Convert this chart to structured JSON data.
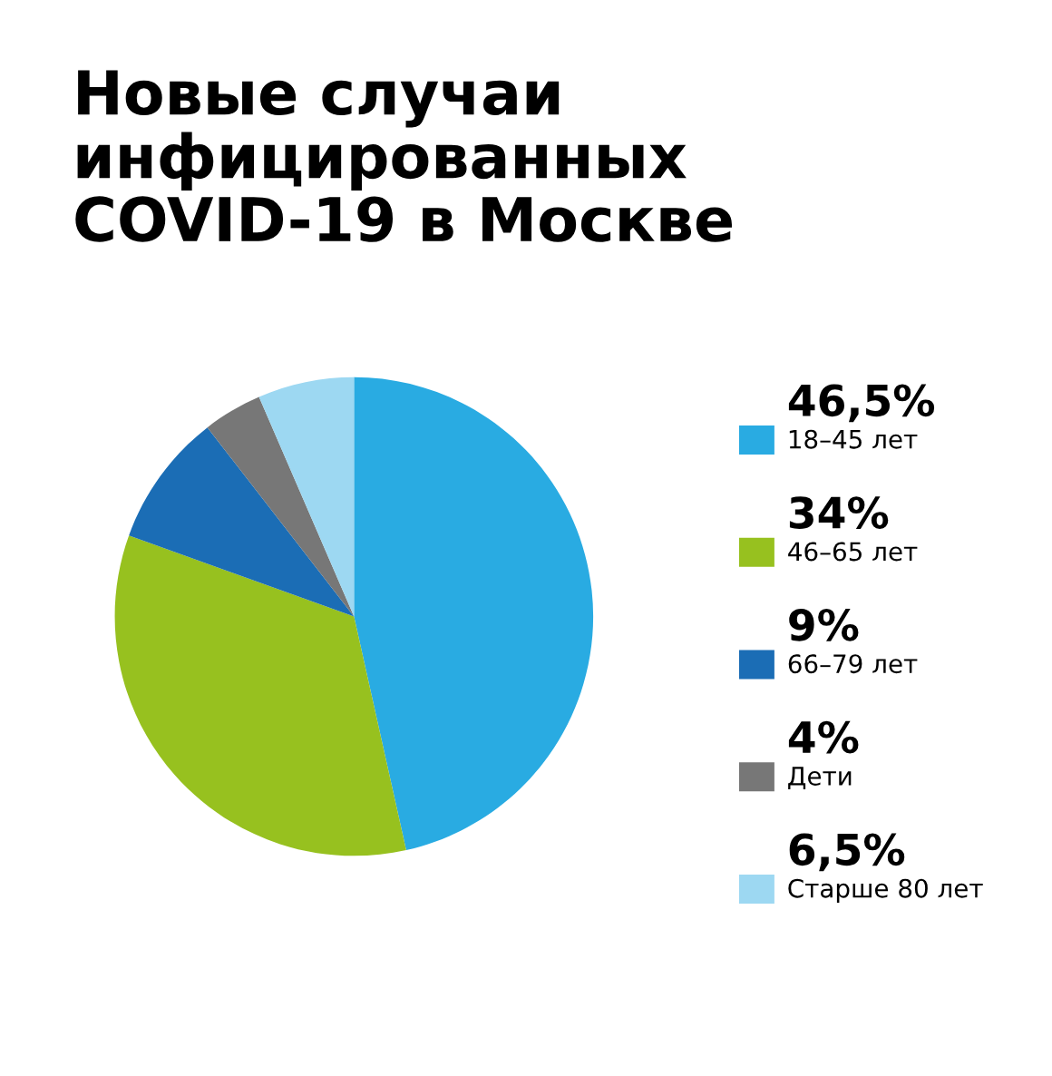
{
  "chart_data": {
    "type": "pie",
    "title": "Новые случаи\nинфицированных\nCOVID-19 в Москве",
    "categories": [
      "18–45 лет",
      "46–65 лет",
      "66–79 лет",
      "Дети",
      "Старше 80 лет"
    ],
    "values": [
      46.5,
      34,
      9,
      4,
      6.5
    ],
    "value_labels": [
      "46,5%",
      "34%",
      "9%",
      "4%",
      "6,5%"
    ],
    "colors": [
      "#29abe2",
      "#97c11f",
      "#1b6db5",
      "#777777",
      "#9dd8f2"
    ],
    "legend": "right"
  }
}
